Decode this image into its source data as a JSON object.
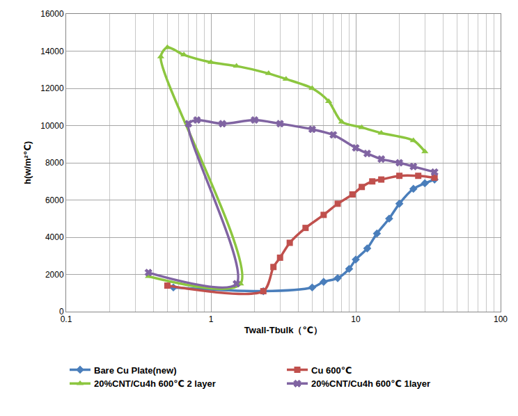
{
  "chart_data": {
    "type": "line",
    "x_label": "Twall-Tbulk（℃）",
    "y_label": "h(w/m²℃)",
    "log": "x",
    "grid": true,
    "legend": "bottom",
    "xlim": [
      0.1,
      100
    ],
    "xticks": [
      0.1,
      1,
      10,
      100
    ],
    "ylim": [
      0,
      16000
    ],
    "yticks": [
      0,
      2000,
      4000,
      6000,
      8000,
      10000,
      12000,
      14000,
      16000
    ],
    "series": [
      {
        "name": "Bare Cu Plate(new)",
        "color": "#4a7ebb",
        "marker": "diamond",
        "line_style": "solid",
        "x": [
          0.55,
          2.3,
          5,
          6,
          7.5,
          9,
          10,
          12,
          14,
          17,
          20,
          25,
          30,
          35
        ],
        "values": [
          1300,
          1100,
          1300,
          1600,
          1800,
          2300,
          2800,
          3400,
          4200,
          5000,
          5800,
          6600,
          6900,
          7100
        ]
      },
      {
        "name": "Cu 600℃",
        "color": "#c0504d",
        "marker": "square",
        "line_style": "solid",
        "x": [
          0.5,
          2.3,
          2.7,
          3,
          3.5,
          4.5,
          6,
          7.5,
          9.5,
          11,
          13,
          15,
          20,
          27,
          35
        ],
        "values": [
          1400,
          1100,
          2400,
          2900,
          3700,
          4500,
          5200,
          5800,
          6300,
          6700,
          7000,
          7100,
          7300,
          7300,
          7200
        ]
      },
      {
        "name": "20%CNT/Cu4h 600℃ 2 layer",
        "color": "#8cc63f",
        "marker": "triangle",
        "line_style": "solid",
        "x": [
          0.37,
          1.6,
          0.45,
          0.5,
          0.65,
          1,
          1.5,
          2.5,
          3.3,
          5,
          6.5,
          8,
          11,
          15,
          25,
          30
        ],
        "values": [
          1900,
          1500,
          13700,
          14200,
          13800,
          13400,
          13200,
          12800,
          12500,
          12000,
          11300,
          10200,
          9900,
          9600,
          9200,
          8600
        ]
      },
      {
        "name": "20%CNT/Cu4h 600℃ 1layer",
        "color": "#8064a2",
        "marker": "x",
        "line_style": "solid",
        "x": [
          0.37,
          1.5,
          0.7,
          0.8,
          1.2,
          2,
          3,
          5,
          7,
          10,
          12,
          15,
          20,
          25,
          35
        ],
        "values": [
          2100,
          1500,
          10100,
          10300,
          10100,
          10300,
          10100,
          9800,
          9500,
          8800,
          8500,
          8200,
          8000,
          7800,
          7500
        ]
      }
    ]
  }
}
